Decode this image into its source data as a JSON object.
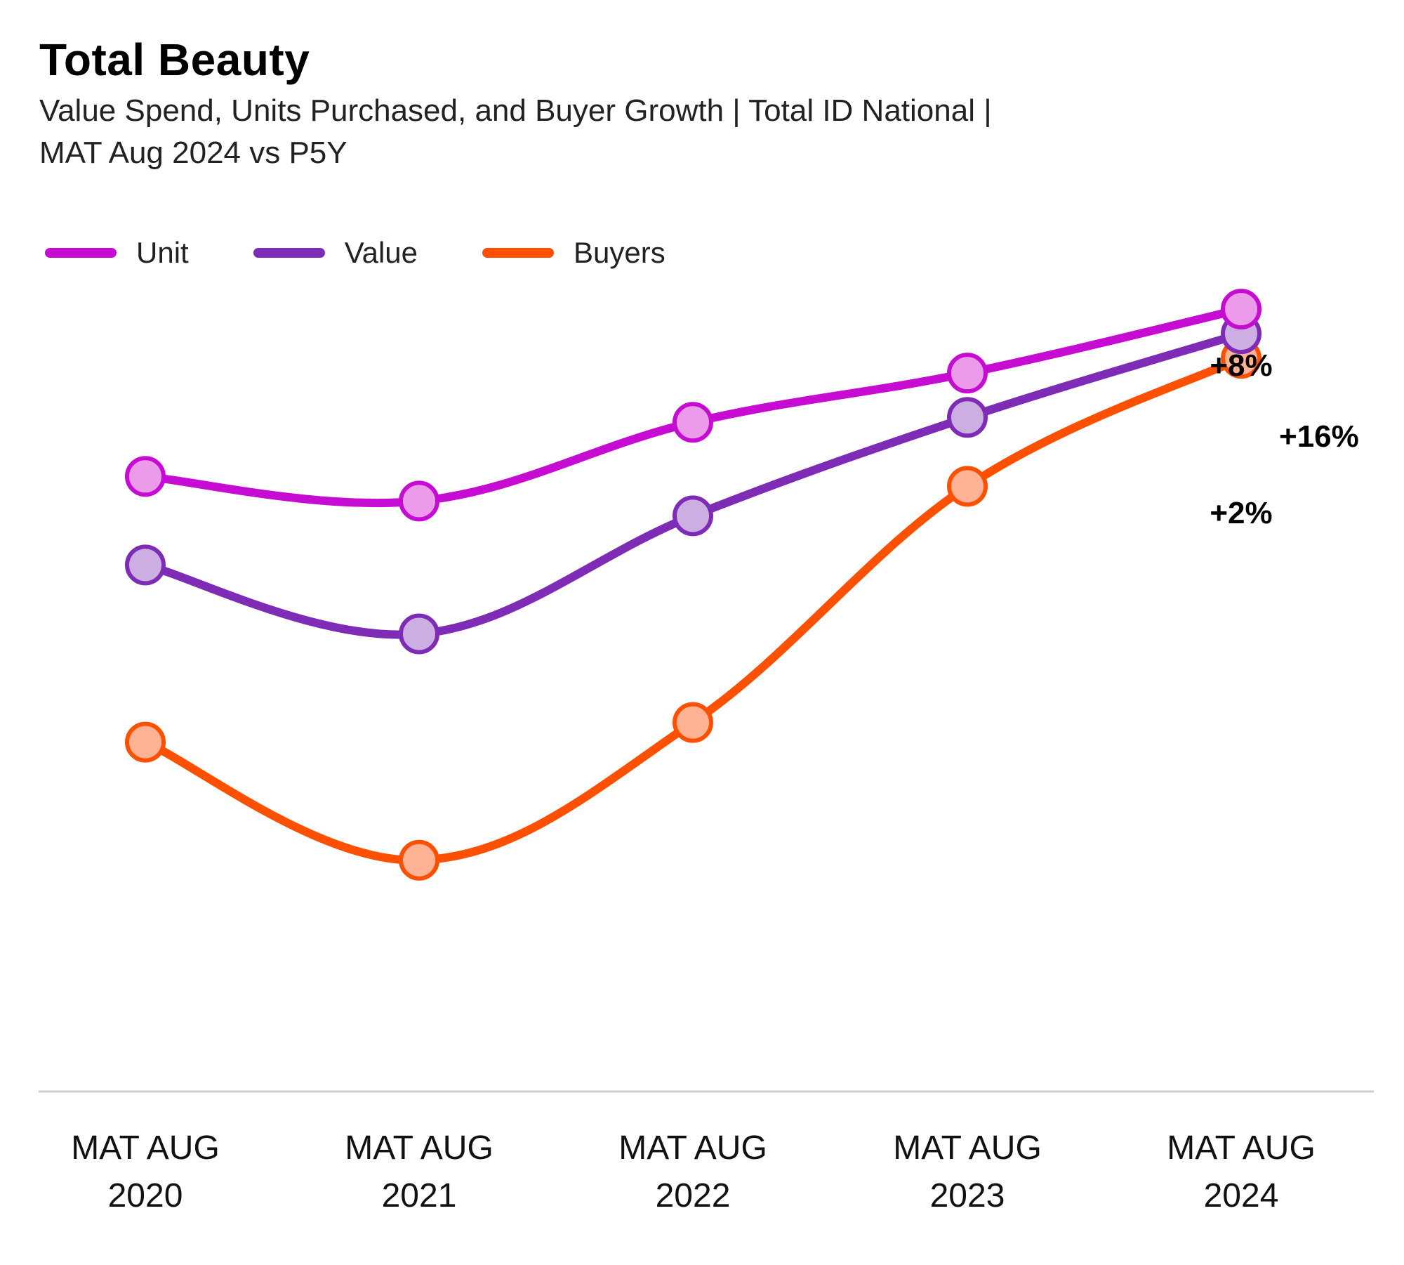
{
  "header": {
    "title": "Total Beauty",
    "subtitle_line1": "Value Spend, Units Purchased, and Buyer Growth | Total ID National |",
    "subtitle_line2": "MAT Aug 2024 vs P5Y"
  },
  "legend": [
    {
      "label": "Unit",
      "color": "#C60BD2"
    },
    {
      "label": "Value",
      "color": "#7E2BB5"
    },
    {
      "label": "Buyers",
      "color": "#FF5000"
    }
  ],
  "chart_data": {
    "type": "line",
    "title": "Total Beauty",
    "categories": [
      [
        "MAT AUG",
        "2020"
      ],
      [
        "MAT AUG",
        "2021"
      ],
      [
        "MAT AUG",
        "2022"
      ],
      [
        "MAT AUG",
        "2023"
      ],
      [
        "MAT AUG",
        "2024"
      ]
    ],
    "series": [
      {
        "name": "Unit",
        "color": "#C60BD2",
        "marker_fill": "#EB9BEA",
        "values": [
          0.0,
          -0.5,
          1.1,
          2.1,
          3.4
        ],
        "end_label": "+8%"
      },
      {
        "name": "Value",
        "color": "#7E2BB5",
        "marker_fill": "#CDAEE2",
        "values": [
          -1.8,
          -3.2,
          -0.8,
          1.2,
          2.9
        ],
        "end_label": "+16%"
      },
      {
        "name": "Buyers",
        "color": "#FF5000",
        "marker_fill": "#FFB394",
        "values": [
          -5.4,
          -7.8,
          -5.0,
          -0.2,
          2.4
        ],
        "end_label": "+2%"
      }
    ],
    "ylim": [
      -12.5,
      5.4
    ],
    "grid": false,
    "legend_position": "top-left",
    "baseline": true
  }
}
